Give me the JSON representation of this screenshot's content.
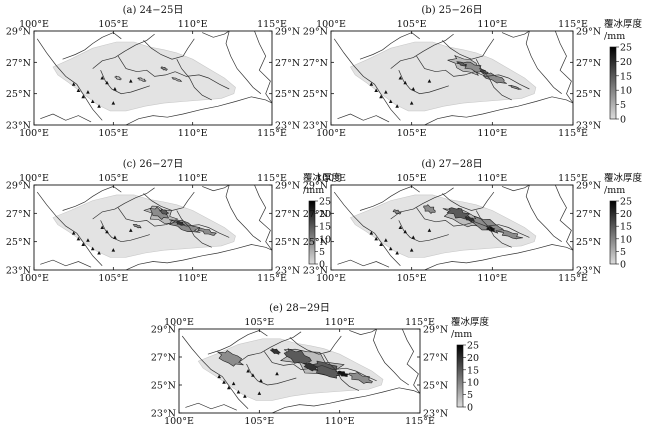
{
  "figure": {
    "colorbar": {
      "title": "覆冰厚度",
      "unit": "/mm",
      "ticks": [
        "25",
        "20",
        "15",
        "10",
        "5",
        "0"
      ]
    },
    "tick_labels": {
      "x": [
        "100°E",
        "105°E",
        "110°E",
        "115°E"
      ],
      "y": [
        "29°N",
        "27°N",
        "25°N",
        "23°N"
      ]
    }
  },
  "chart_data": [
    {
      "type": "heatmap",
      "title": "(a) 24−25日",
      "x_range": [
        100,
        115
      ],
      "y_range": [
        23,
        29
      ],
      "x_ticks": [
        100,
        105,
        110,
        115
      ],
      "y_ticks": [
        23,
        25,
        27,
        29
      ],
      "value_range": [
        0,
        25
      ],
      "colorbar": false,
      "max_value_est": 10
    },
    {
      "type": "heatmap",
      "title": "(b) 25−26日",
      "x_range": [
        100,
        115
      ],
      "y_range": [
        23,
        29
      ],
      "x_ticks": [
        100,
        105,
        110,
        115
      ],
      "y_ticks": [
        23,
        25,
        27,
        29
      ],
      "value_range": [
        0,
        25
      ],
      "colorbar": true,
      "max_value_est": 22
    },
    {
      "type": "heatmap",
      "title": "(c) 26−27日",
      "x_range": [
        100,
        115
      ],
      "y_range": [
        23,
        29
      ],
      "x_ticks": [
        100,
        105,
        110,
        115
      ],
      "y_ticks": [
        23,
        25,
        27,
        29
      ],
      "value_range": [
        0,
        25
      ],
      "colorbar": true,
      "max_value_est": 22
    },
    {
      "type": "heatmap",
      "title": "(d) 27−28日",
      "x_range": [
        100,
        115
      ],
      "y_range": [
        23,
        29
      ],
      "x_ticks": [
        100,
        105,
        110,
        115
      ],
      "y_ticks": [
        23,
        25,
        27,
        29
      ],
      "value_range": [
        0,
        25
      ],
      "colorbar": true,
      "max_value_est": 25
    },
    {
      "type": "heatmap",
      "title": "(e) 28−29日",
      "x_range": [
        100,
        115
      ],
      "y_range": [
        23,
        29
      ],
      "x_ticks": [
        100,
        105,
        110,
        115
      ],
      "y_ticks": [
        23,
        25,
        27,
        29
      ],
      "value_range": [
        0,
        25
      ],
      "colorbar": true,
      "max_value_est": 25
    }
  ]
}
